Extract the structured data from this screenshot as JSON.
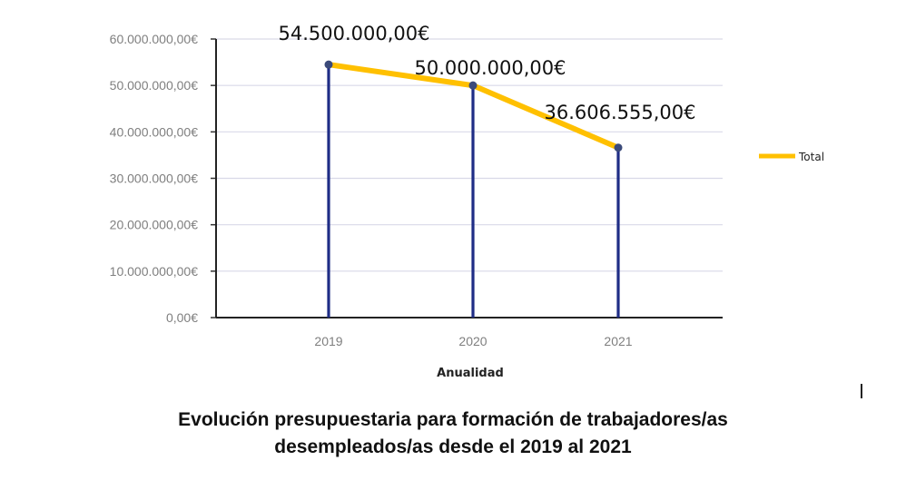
{
  "chart_data": {
    "type": "line",
    "x": [
      "2019",
      "2020",
      "2021"
    ],
    "series": [
      {
        "name": "Total",
        "values": [
          54500000,
          50000000,
          36606555
        ],
        "color": "#ffc000"
      }
    ],
    "drop_line_color": "#1f2d86",
    "data_labels": [
      "54.500.000,00€",
      "50.000.000,00€",
      "36.606.555,00€"
    ],
    "y_ticks": [
      "0,00€",
      "10.000.000,00€",
      "20.000.000,00€",
      "30.000.000,00€",
      "40.000.000,00€",
      "50.000.000,00€",
      "60.000.000,00€"
    ],
    "ylim": [
      0,
      60000000
    ],
    "xlabel": "Anualidad",
    "ylabel": "",
    "grid": true,
    "legend_position": "right"
  },
  "caption": {
    "line1": "Evolución presupuestaria para formación de trabajadores/as",
    "line2": "desempleados/as desde el 2019 al 2021"
  }
}
